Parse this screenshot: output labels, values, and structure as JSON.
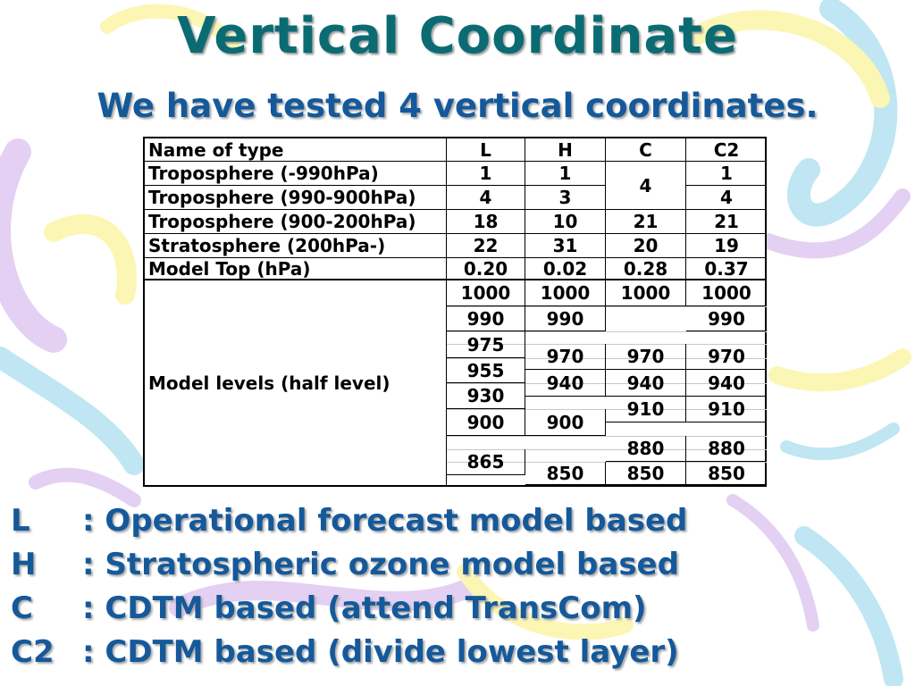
{
  "slide": {
    "title": "Vertical Coordinate",
    "subtitle": "We have tested 4 vertical coordinates."
  },
  "table": {
    "headers": [
      "Name of type",
      "L",
      "H",
      "C",
      "C2"
    ],
    "rows": [
      {
        "name": "Troposphere (-990hPa)",
        "L": "1",
        "H": "1",
        "C": "4",
        "C2": "1"
      },
      {
        "name": "Troposphere (990-900hPa)",
        "L": "4",
        "H": "3",
        "C2": "4"
      },
      {
        "name": "Troposphere (900-200hPa)",
        "L": "18",
        "H": "10",
        "C": "21",
        "C2": "21"
      },
      {
        "name": "Stratosphere (200hPa-)",
        "L": "22",
        "H": "31",
        "C": "20",
        "C2": "19"
      },
      {
        "name": "Model Top (hPa)",
        "L": "0.20",
        "H": "0.02",
        "C": "0.28",
        "C2": "0.37"
      }
    ],
    "levels_label": "Model levels (half level)",
    "levels": {
      "L": [
        "1000",
        "990",
        "975",
        "955",
        "930",
        "900",
        "865"
      ],
      "H": [
        "1000",
        "990",
        "970",
        "940",
        "900",
        "850"
      ],
      "C": [
        "1000",
        "970",
        "940",
        "910",
        "880",
        "850"
      ],
      "C2": [
        "1000",
        "990",
        "970",
        "940",
        "910",
        "880",
        "850"
      ]
    }
  },
  "legend": [
    {
      "key": "L",
      "text": ": Operational forecast model based"
    },
    {
      "key": "H",
      "text": ": Stratospheric ozone model based"
    },
    {
      "key": "C",
      "text": ": CDTM based (attend TransCom)"
    },
    {
      "key": "C2",
      "text": ": CDTM based (divide lowest layer)"
    }
  ],
  "colors": {
    "title": "#0b6b73",
    "subtitle": "#15599a",
    "text": "#000000",
    "swirl_blue": "#bfe6f2",
    "swirl_yellow": "#fbf6b4",
    "swirl_purple": "#e4d0f2"
  }
}
